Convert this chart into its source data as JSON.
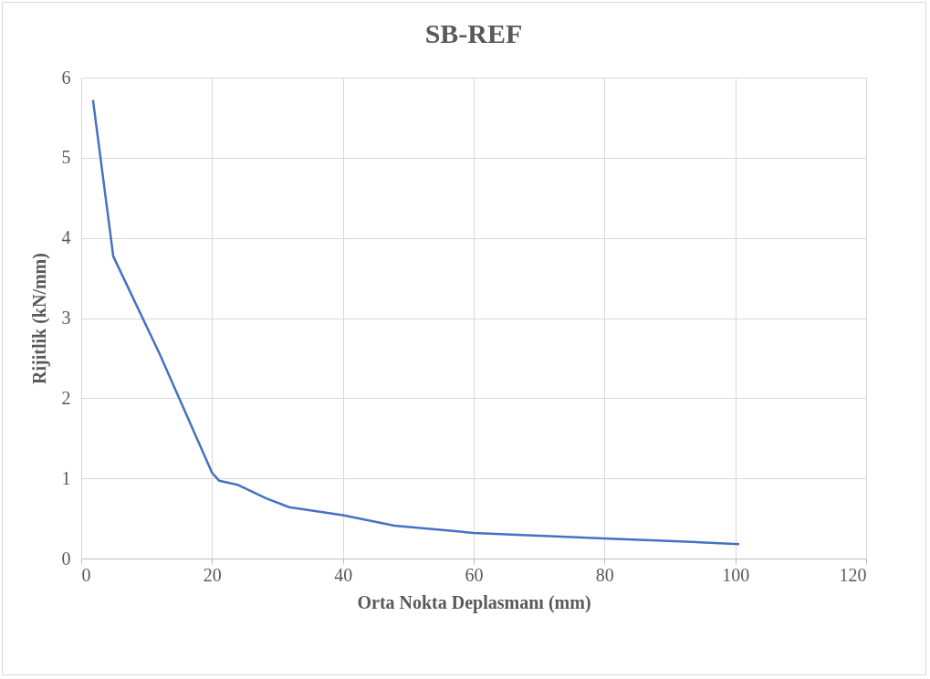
{
  "chart_data": {
    "type": "line",
    "title": "SB-REF",
    "xlabel": "Orta Nokta Deplasmanı (mm)",
    "ylabel": "Rijitlik (kN/mm)",
    "x": [
      1.8,
      4.9,
      12,
      20,
      21.1,
      23.9,
      28.3,
      31.8,
      40,
      47.9,
      60,
      80,
      95.3,
      100.6
    ],
    "series": [
      {
        "color": "#4472c4",
        "values": [
          5.72,
          3.77,
          2.55,
          1.07,
          0.97,
          0.92,
          0.75,
          0.64,
          0.54,
          0.41,
          0.32,
          0.25,
          0.2,
          0.18
        ]
      }
    ],
    "xlim": [
      0,
      120
    ],
    "xticks": [
      0,
      20,
      40,
      60,
      80,
      100,
      120
    ],
    "ylim": [
      0,
      6
    ],
    "yticks": [
      0,
      1,
      2,
      3,
      4,
      5,
      6
    ],
    "grid": true,
    "marker": "none",
    "line_style": "solid"
  }
}
